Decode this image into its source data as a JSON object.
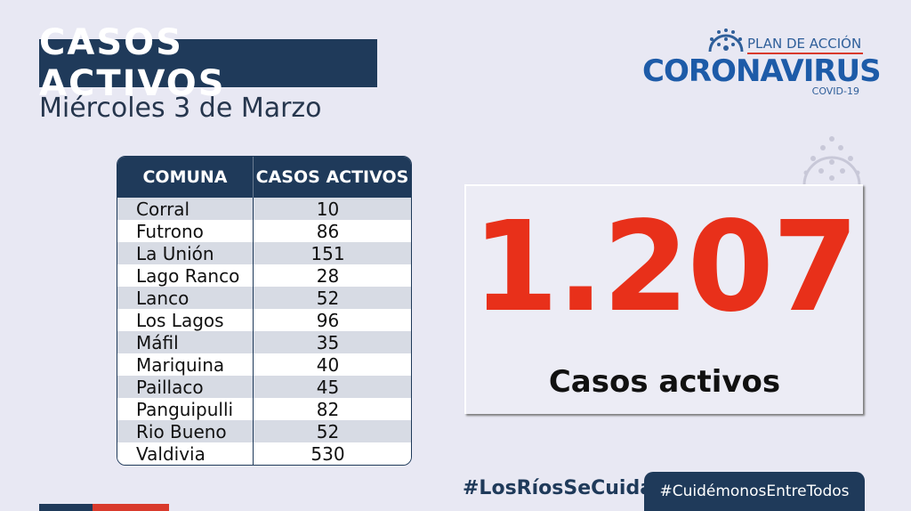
{
  "header": {
    "title": "CASOS ACTIVOS",
    "date": "Miércoles 3 de Marzo"
  },
  "logo": {
    "line1": "PLAN DE ACCIÓN",
    "line2": "CORONAVIRUS",
    "line3": "COVID-19"
  },
  "table": {
    "headers": [
      "COMUNA",
      "CASOS ACTIVOS"
    ],
    "rows": [
      {
        "comuna": "Corral",
        "casos": "10"
      },
      {
        "comuna": "Futrono",
        "casos": "86"
      },
      {
        "comuna": "La Unión",
        "casos": "151"
      },
      {
        "comuna": "Lago Ranco",
        "casos": "28"
      },
      {
        "comuna": "Lanco",
        "casos": "52"
      },
      {
        "comuna": "Los Lagos",
        "casos": "96"
      },
      {
        "comuna": "Máfil",
        "casos": "35"
      },
      {
        "comuna": "Mariquina",
        "casos": "40"
      },
      {
        "comuna": "Paillaco",
        "casos": "45"
      },
      {
        "comuna": "Panguipulli",
        "casos": "82"
      },
      {
        "comuna": "Rio Bueno",
        "casos": "52"
      },
      {
        "comuna": "Valdivia",
        "casos": "530"
      }
    ]
  },
  "total": {
    "value": "1.207",
    "label": "Casos activos"
  },
  "footer": {
    "hashtag1": "#LosRíosSeCuida",
    "hashtag2": "#CuidémonosEntreTodos"
  },
  "colors": {
    "navy": "#1f3a5a",
    "red": "#e8301a",
    "background": "#e8e8f3"
  }
}
